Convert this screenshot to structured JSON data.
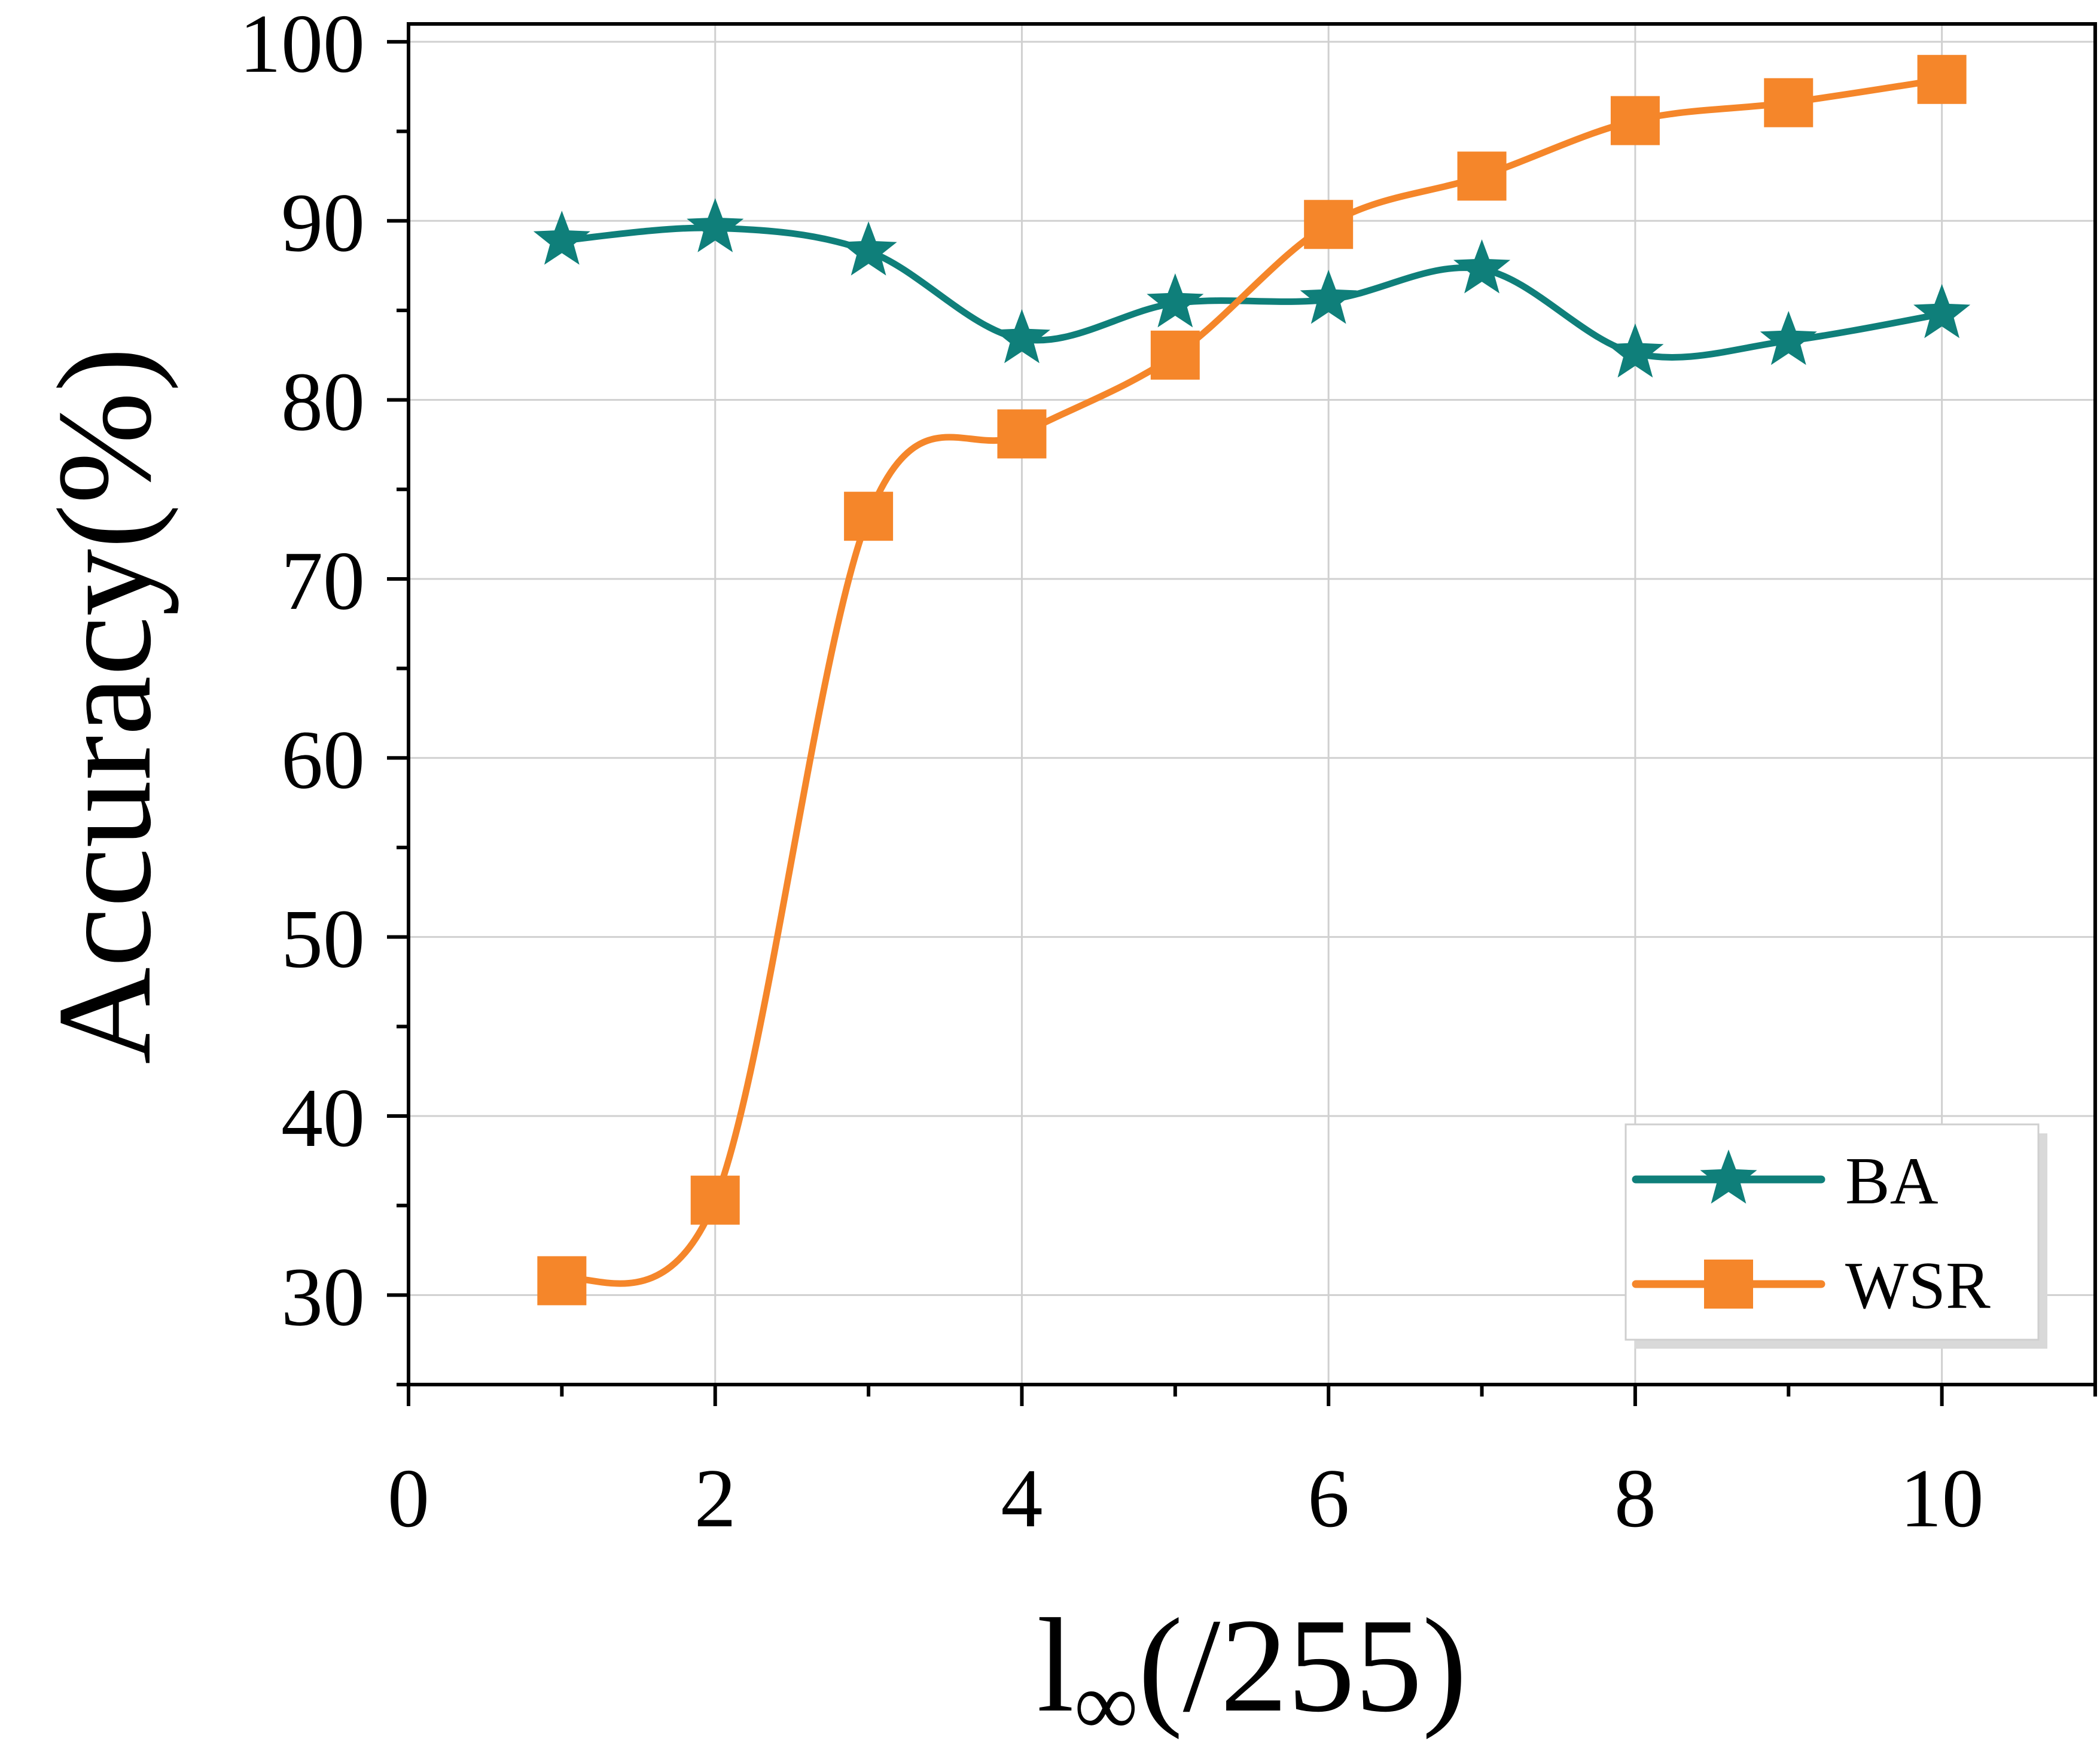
{
  "chart_data": {
    "type": "line",
    "xlabel_main": "l",
    "xlabel_sub": "∞",
    "xlabel_rest": "(/255)",
    "ylabel": "Accuracy(%)",
    "xlim": [
      0,
      11
    ],
    "ylim": [
      25,
      101
    ],
    "xticks": [
      0,
      2,
      4,
      6,
      8,
      10
    ],
    "yticks": [
      30,
      40,
      50,
      60,
      70,
      80,
      90,
      100
    ],
    "x": [
      1,
      2,
      3,
      4,
      5,
      6,
      7,
      8,
      9,
      10
    ],
    "grid": true,
    "legend_position": "bottom-right",
    "series": [
      {
        "name": "BA",
        "color": "#0f7f7a",
        "marker": "star",
        "values": [
          88.9,
          89.6,
          88.3,
          83.4,
          85.4,
          85.6,
          87.3,
          82.6,
          83.3,
          84.8
        ]
      },
      {
        "name": "WSR",
        "color": "#f5862a",
        "marker": "square",
        "values": [
          30.8,
          35.3,
          73.5,
          78.1,
          82.5,
          89.8,
          92.5,
          95.6,
          96.6,
          97.9
        ]
      }
    ]
  }
}
